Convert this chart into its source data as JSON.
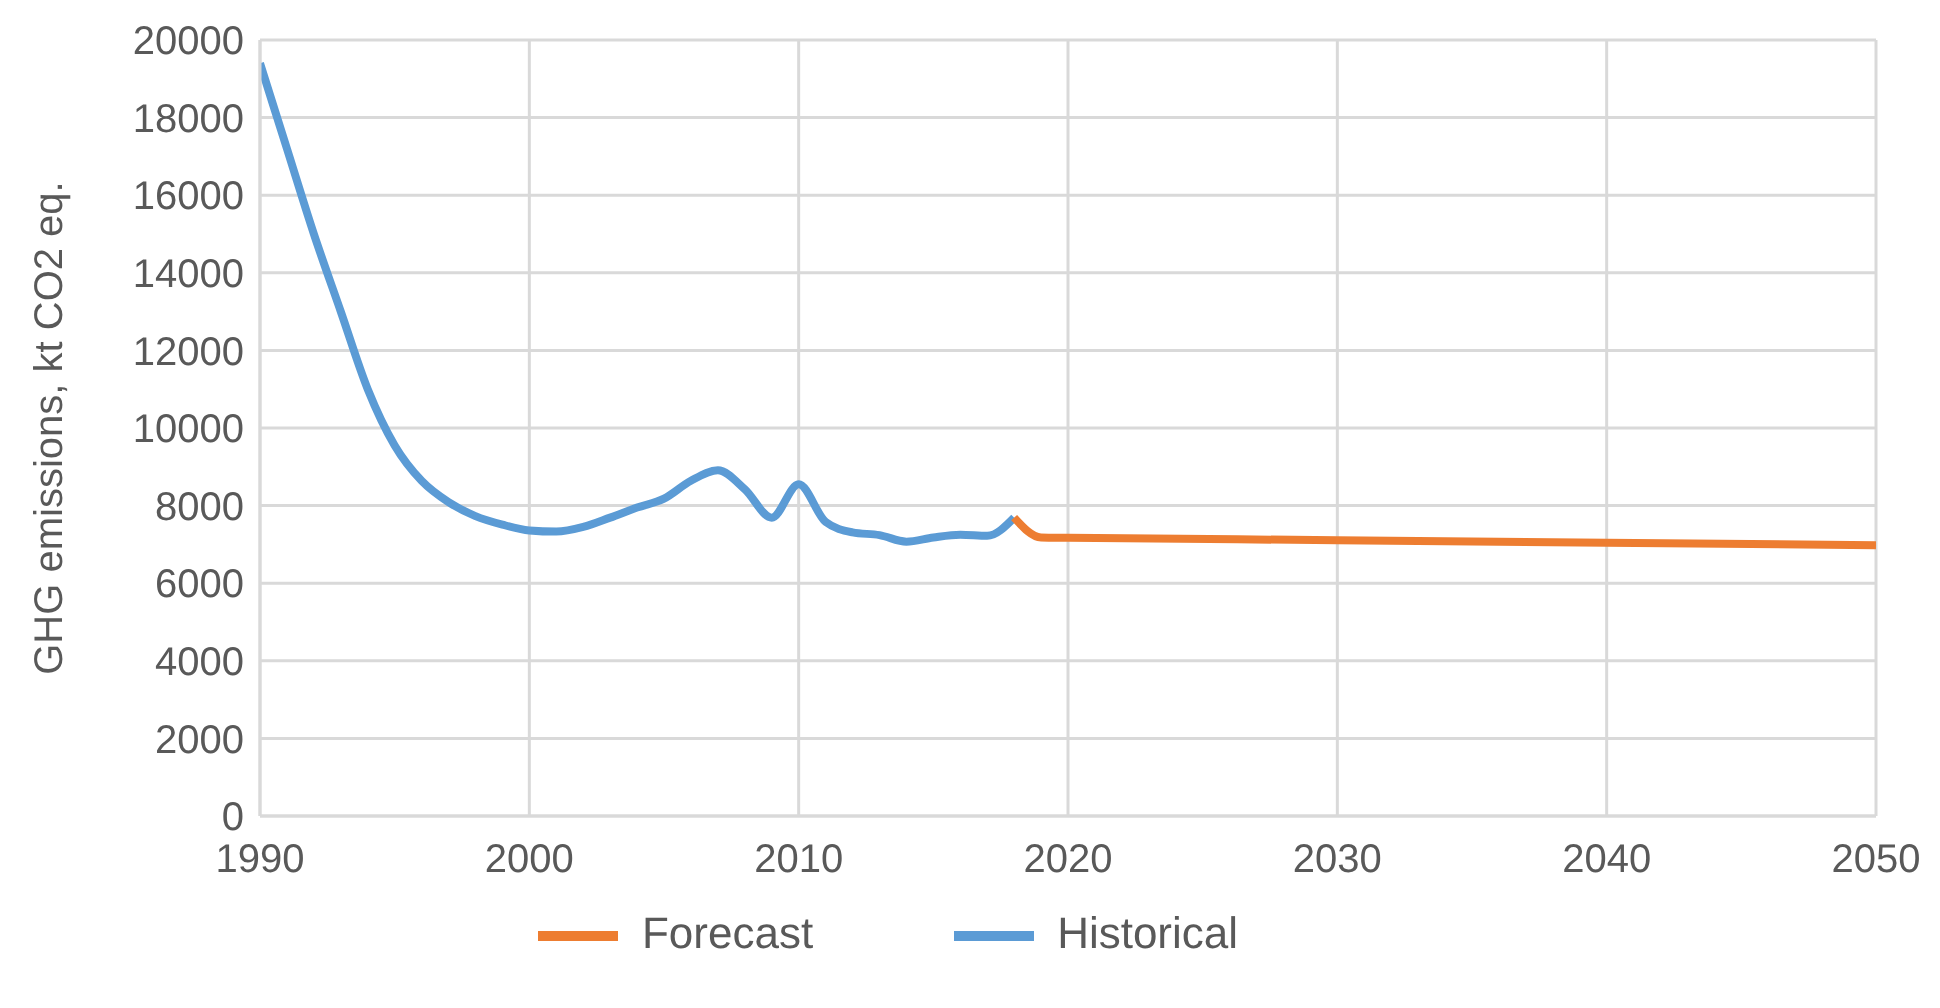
{
  "chart_data": {
    "type": "line",
    "ylabel": "GHG emissions, kt CO2 eq.",
    "xlim": [
      1990,
      2050
    ],
    "xticks": [
      1990,
      2000,
      2010,
      2020,
      2030,
      2040,
      2050
    ],
    "ylim": [
      0,
      20000
    ],
    "yticks": [
      0,
      2000,
      4000,
      6000,
      8000,
      10000,
      12000,
      14000,
      16000,
      18000,
      20000
    ],
    "grid": true,
    "legend": "bottom",
    "marker": "none",
    "line_style": "solid",
    "series": [
      {
        "name": "Historical",
        "color": "#5b9bd5",
        "x": [
          1990,
          1991,
          1992,
          1993,
          1994,
          1995,
          1996,
          1997,
          1998,
          1999,
          2000,
          2001,
          2002,
          2003,
          2004,
          2005,
          2006,
          2007,
          2008,
          2009,
          2010,
          2011,
          2012,
          2013,
          2014,
          2015,
          2016,
          2017,
          2018
        ],
        "values": [
          19400,
          17200,
          15000,
          13000,
          11000,
          9550,
          8640,
          8090,
          7730,
          7510,
          7360,
          7330,
          7450,
          7690,
          7950,
          8180,
          8640,
          8910,
          8420,
          7690,
          8550,
          7580,
          7310,
          7240,
          7070,
          7180,
          7250,
          7220,
          7690
        ]
      },
      {
        "name": "Forecast",
        "color": "#ed7d31",
        "x": [
          2018,
          2019,
          2020,
          2030,
          2040,
          2050
        ],
        "values": [
          7690,
          7180,
          7170,
          7110,
          7040,
          6980
        ]
      }
    ]
  }
}
